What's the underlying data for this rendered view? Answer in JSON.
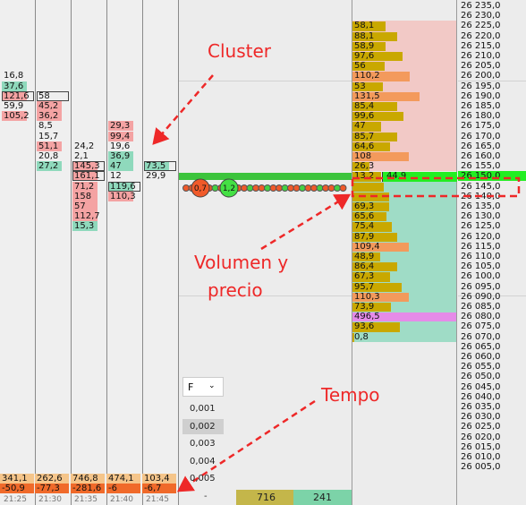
{
  "annotations": {
    "cluster": "Cluster",
    "volumen_line1": "Volumen y",
    "volumen_line2": "precio",
    "tempo": "Tempo"
  },
  "colors": {
    "bid": "#f4a3a3",
    "ask": "#8fd9bc",
    "volume_bar": "#c9a800",
    "volume_bar_large": "#f39a5c",
    "volume_max": "#e58be8",
    "current_price": "#22ee22",
    "upper_zone": "#f2c9c6",
    "lower_zone": "#9fdcc6",
    "annotation": "#ee2828"
  },
  "price_axis": [
    "26 235,0",
    "26 230,0",
    "26 225,0",
    "26 220,0",
    "26 215,0",
    "26 210,0",
    "26 205,0",
    "26 200,0",
    "26 195,0",
    "26 190,0",
    "26 185,0",
    "26 180,0",
    "26 175,0",
    "26 170,0",
    "26 165,0",
    "26 160,0",
    "26 155,0",
    "26 150,0",
    "26 145,0",
    "26 140,0",
    "26 135,0",
    "26 130,0",
    "26 125,0",
    "26 120,0",
    "26 115,0",
    "26 110,0",
    "26 105,0",
    "26 100,0",
    "26 095,0",
    "26 090,0",
    "26 085,0",
    "26 080,0",
    "26 075,0",
    "26 070,0",
    "26 065,0",
    "26 060,0",
    "26 055,0",
    "26 050,0",
    "26 045,0",
    "26 040,0",
    "26 035,0",
    "26 030,0",
    "26 025,0",
    "26 020,0",
    "26 015,0",
    "26 010,0",
    "26 005,0"
  ],
  "volume_profile": [
    {
      "row": 2,
      "value": "58,1",
      "frac": 0.32
    },
    {
      "row": 3,
      "value": "88,1",
      "frac": 0.43
    },
    {
      "row": 4,
      "value": "58,9",
      "frac": 0.32
    },
    {
      "row": 5,
      "value": "97,6",
      "frac": 0.48
    },
    {
      "row": 6,
      "value": "56",
      "frac": 0.31
    },
    {
      "row": 7,
      "value": "110,2",
      "frac": 0.55,
      "large": true
    },
    {
      "row": 8,
      "value": "53",
      "frac": 0.29
    },
    {
      "row": 9,
      "value": "131,5",
      "frac": 0.65,
      "large": true
    },
    {
      "row": 10,
      "value": "85,4",
      "frac": 0.43
    },
    {
      "row": 11,
      "value": "99,6",
      "frac": 0.49
    },
    {
      "row": 12,
      "value": "47",
      "frac": 0.28
    },
    {
      "row": 13,
      "value": "85,7",
      "frac": 0.43
    },
    {
      "row": 14,
      "value": "64,6",
      "frac": 0.36
    },
    {
      "row": 15,
      "value": "108",
      "frac": 0.54,
      "large": true
    },
    {
      "row": 16,
      "value": "26,3",
      "frac": 0.16
    },
    {
      "row": 17,
      "value": "13,2",
      "frac": 0.28,
      "current": true
    },
    {
      "row": 18,
      "value": "",
      "frac": 0.3
    },
    {
      "row": 19,
      "value": "",
      "frac": 0.35
    },
    {
      "row": 20,
      "value": "69,3",
      "frac": 0.35
    },
    {
      "row": 21,
      "value": "65,6",
      "frac": 0.33
    },
    {
      "row": 22,
      "value": "75,4",
      "frac": 0.38
    },
    {
      "row": 23,
      "value": "87,9",
      "frac": 0.43
    },
    {
      "row": 24,
      "value": "109,4",
      "frac": 0.54,
      "large": true
    },
    {
      "row": 25,
      "value": "48,9",
      "frac": 0.27
    },
    {
      "row": 26,
      "value": "86,4",
      "frac": 0.43
    },
    {
      "row": 27,
      "value": "67,3",
      "frac": 0.36
    },
    {
      "row": 28,
      "value": "95,7",
      "frac": 0.47
    },
    {
      "row": 29,
      "value": "110,3",
      "frac": 0.54,
      "large": true
    },
    {
      "row": 30,
      "value": "73,9",
      "frac": 0.37
    },
    {
      "row": 31,
      "value": "496,5",
      "frac": 1.0,
      "max": true
    },
    {
      "row": 32,
      "value": "93,6",
      "frac": 0.46
    },
    {
      "row": 33,
      "value": "0,8",
      "frac": 0.02
    }
  ],
  "current_ask_volume": "44,9",
  "cluster_columns": [
    {
      "time": "21:25",
      "x": 2,
      "total": "341,1",
      "delta": "-50,9",
      "cells": [
        {
          "row": 7,
          "v": "16,8"
        },
        {
          "row": 8,
          "v": "37,6",
          "t": "ask"
        },
        {
          "row": 9,
          "v": "121,6",
          "t": "bid",
          "box": true
        },
        {
          "row": 10,
          "v": "59,9"
        },
        {
          "row": 11,
          "v": "105,2",
          "t": "bid"
        }
      ]
    },
    {
      "time": "21:30",
      "x": 41,
      "total": "262,6",
      "delta": "-77,3",
      "cells": [
        {
          "row": 9,
          "v": "58",
          "box": true
        },
        {
          "row": 10,
          "v": "45,2",
          "t": "bid"
        },
        {
          "row": 11,
          "v": "36,2",
          "t": "bid"
        },
        {
          "row": 12,
          "v": "8,5"
        },
        {
          "row": 13,
          "v": "15,7"
        },
        {
          "row": 14,
          "v": "51,1",
          "t": "bid"
        },
        {
          "row": 15,
          "v": "20,8"
        },
        {
          "row": 16,
          "v": "27,2",
          "t": "ask"
        }
      ]
    },
    {
      "time": "21:35",
      "x": 81,
      "total": "746,8",
      "delta": "-281,6",
      "cells": [
        {
          "row": 14,
          "v": "24,2"
        },
        {
          "row": 15,
          "v": "2,1"
        },
        {
          "row": 16,
          "v": "145,3",
          "t": "bid",
          "box": true
        },
        {
          "row": 17,
          "v": "161,1",
          "t": "bid",
          "box": true
        },
        {
          "row": 18,
          "v": "71,2",
          "t": "bid"
        },
        {
          "row": 19,
          "v": "158",
          "t": "bid"
        },
        {
          "row": 20,
          "v": "57",
          "t": "bid"
        },
        {
          "row": 21,
          "v": "112,7",
          "t": "bid"
        },
        {
          "row": 22,
          "v": "15,3",
          "t": "ask"
        }
      ]
    },
    {
      "time": "21:40",
      "x": 121,
      "total": "474,1",
      "delta": "-6",
      "cells": [
        {
          "row": 12,
          "v": "29,3",
          "t": "bid"
        },
        {
          "row": 13,
          "v": "99,4",
          "t": "bid"
        },
        {
          "row": 14,
          "v": "19,6"
        },
        {
          "row": 15,
          "v": "36,9",
          "t": "ask"
        },
        {
          "row": 16,
          "v": "47",
          "t": "ask"
        },
        {
          "row": 17,
          "v": "12"
        },
        {
          "row": 18,
          "v": "119,6",
          "t": "ask",
          "box": true
        },
        {
          "row": 19,
          "v": "110,3",
          "t": "bid"
        }
      ]
    },
    {
      "time": "21:45",
      "x": 161,
      "total": "103,4",
      "delta": "-6,7",
      "cells": [
        {
          "row": 16,
          "v": "73,5",
          "t": "ask",
          "box": true
        },
        {
          "row": 17,
          "v": "29,9"
        }
      ]
    }
  ],
  "tick_sizes": {
    "dropdown_label": "F",
    "options": [
      "0,001",
      "0,002",
      "0,003",
      "0,004",
      "0,005"
    ],
    "selected": "0,002"
  },
  "bottom_row": {
    "dash": "-",
    "bid_total": "716",
    "ask_total": "241"
  },
  "trades": {
    "big_sell": "0,7",
    "big_buy": "1,2"
  }
}
